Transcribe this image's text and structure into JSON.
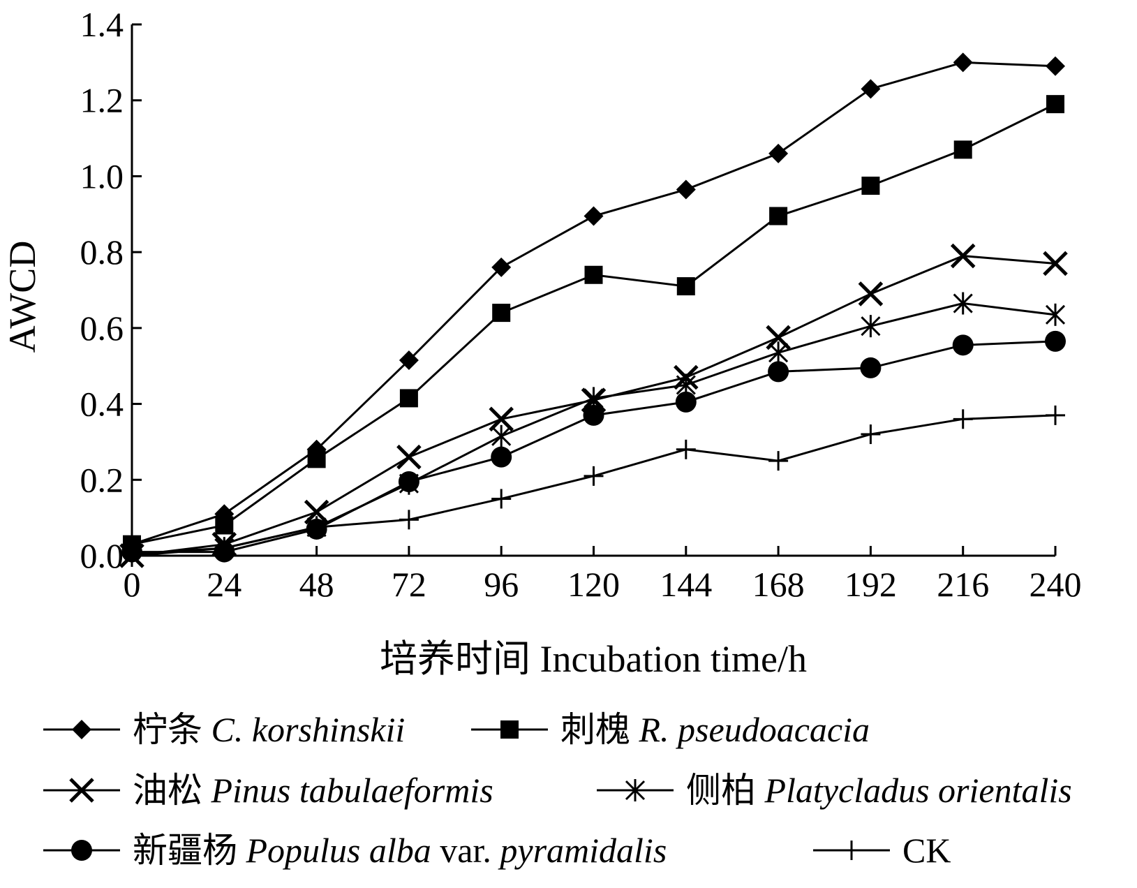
{
  "chart_data": {
    "type": "line",
    "xlabel": "培养时间  Incubation time/h",
    "ylabel": "AWCD",
    "x": [
      0,
      24,
      48,
      72,
      96,
      120,
      144,
      168,
      192,
      216,
      240
    ],
    "xlim": [
      0,
      240
    ],
    "ylim": [
      0.0,
      1.4
    ],
    "x_tick_labels": [
      "0",
      "24",
      "48",
      "72",
      "96",
      "120",
      "144",
      "168",
      "192",
      "216",
      "240"
    ],
    "y_tick_labels": [
      "0.0",
      "0.2",
      "0.4",
      "0.6",
      "0.8",
      "1.0",
      "1.2",
      "1.4"
    ],
    "grid": false,
    "legend_position": "bottom",
    "series": [
      {
        "name_cn": "柠条",
        "name_latin": "C. korshinskii",
        "marker": "diamond",
        "values": [
          0.03,
          0.11,
          0.28,
          0.515,
          0.76,
          0.895,
          0.965,
          1.06,
          1.23,
          1.3,
          1.29
        ]
      },
      {
        "name_cn": "刺槐",
        "name_latin": "R. pseudoacacia",
        "marker": "square",
        "values": [
          0.03,
          0.08,
          0.255,
          0.415,
          0.64,
          0.74,
          0.71,
          0.895,
          0.975,
          1.07,
          1.19
        ]
      },
      {
        "name_cn": "油松",
        "name_latin": "Pinus tabulaeformis",
        "marker": "x",
        "values": [
          0.0,
          0.03,
          0.115,
          0.26,
          0.36,
          0.41,
          0.47,
          0.575,
          0.69,
          0.79,
          0.77
        ]
      },
      {
        "name_cn": "侧柏",
        "name_latin": "Platycladus orientalis",
        "marker": "asterisk",
        "values": [
          0.0,
          0.02,
          0.075,
          0.19,
          0.315,
          0.415,
          0.45,
          0.535,
          0.605,
          0.665,
          0.635
        ]
      },
      {
        "name_cn": "新疆杨",
        "name_latin": "Populus alba",
        "name_suffix": " var. ",
        "name_latin2": "pyramidalis",
        "marker": "circle",
        "values": [
          0.01,
          0.01,
          0.07,
          0.195,
          0.26,
          0.37,
          0.405,
          0.485,
          0.495,
          0.555,
          0.565
        ]
      },
      {
        "name_cn": "",
        "name_latin": "",
        "name_plain": "CK",
        "marker": "plus",
        "values": [
          0.005,
          0.02,
          0.075,
          0.095,
          0.15,
          0.21,
          0.28,
          0.25,
          0.32,
          0.36,
          0.37
        ]
      }
    ]
  }
}
